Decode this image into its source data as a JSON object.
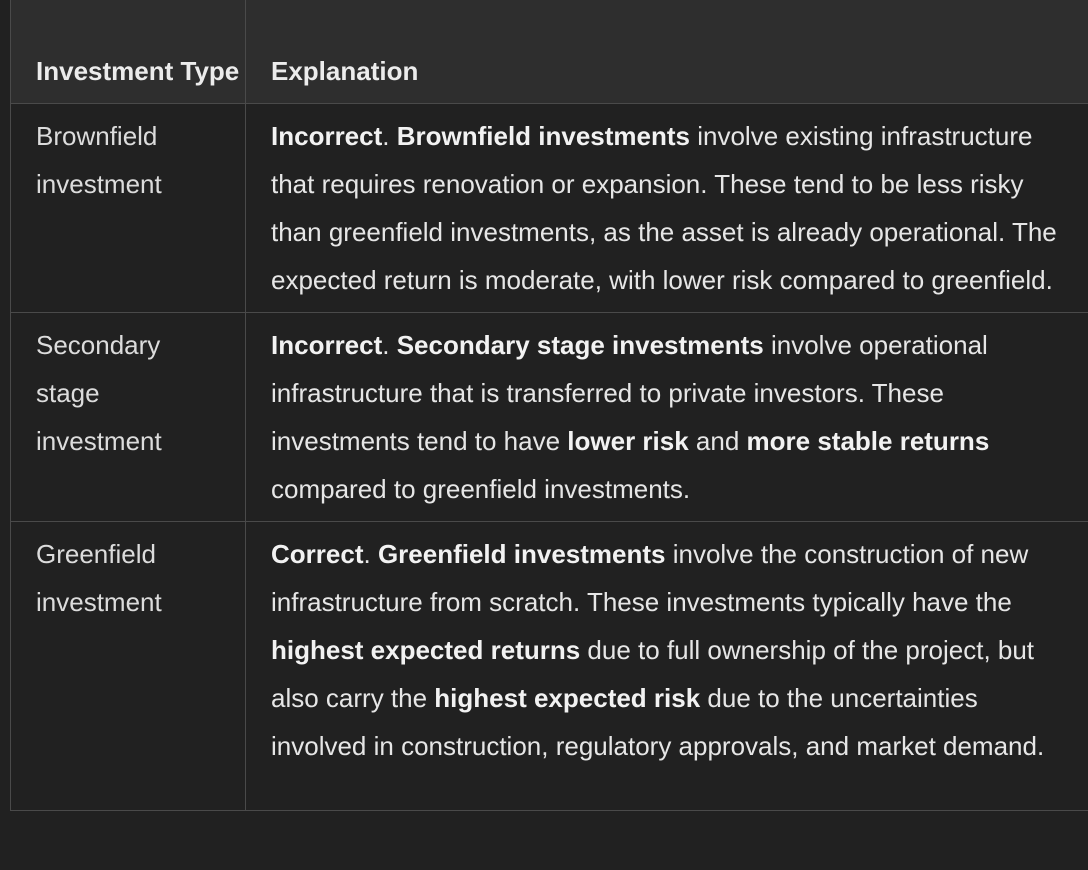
{
  "table": {
    "headers": {
      "type": "Investment Type",
      "explanation": "Explanation"
    },
    "rows": [
      {
        "type": "Brownfield investment",
        "explanation": {
          "verdict": "Incorrect",
          "sep1": ". ",
          "subject": "Brownfield investments",
          "text1": " involve existing infrastructure that requires renovation or expansion. These tend to be less risky than greenfield investments, as the asset is already operational. The expected return is moderate, with lower risk compared to greenfield."
        }
      },
      {
        "type": "Secondary stage investment",
        "explanation": {
          "verdict": "Incorrect",
          "sep1": ". ",
          "subject": "Secondary stage investments",
          "text1": " involve operational infrastructure that is transferred to private investors. These investments tend to have ",
          "bold2": "lower risk",
          "text2": " and ",
          "bold3": "more stable returns",
          "text3": " compared to greenfield investments."
        }
      },
      {
        "type": "Greenfield investment",
        "explanation": {
          "verdict": "Correct",
          "sep1": ". ",
          "subject": "Greenfield investments",
          "text1": " involve the construction of new infrastructure from scratch. These investments typically have the ",
          "bold2": "highest expected returns",
          "text2": " due to full ownership of the project, but also carry the ",
          "bold3": "highest expected risk",
          "text3": " due to the uncertainties involved in construction, regulatory approvals, and market demand."
        }
      }
    ]
  }
}
